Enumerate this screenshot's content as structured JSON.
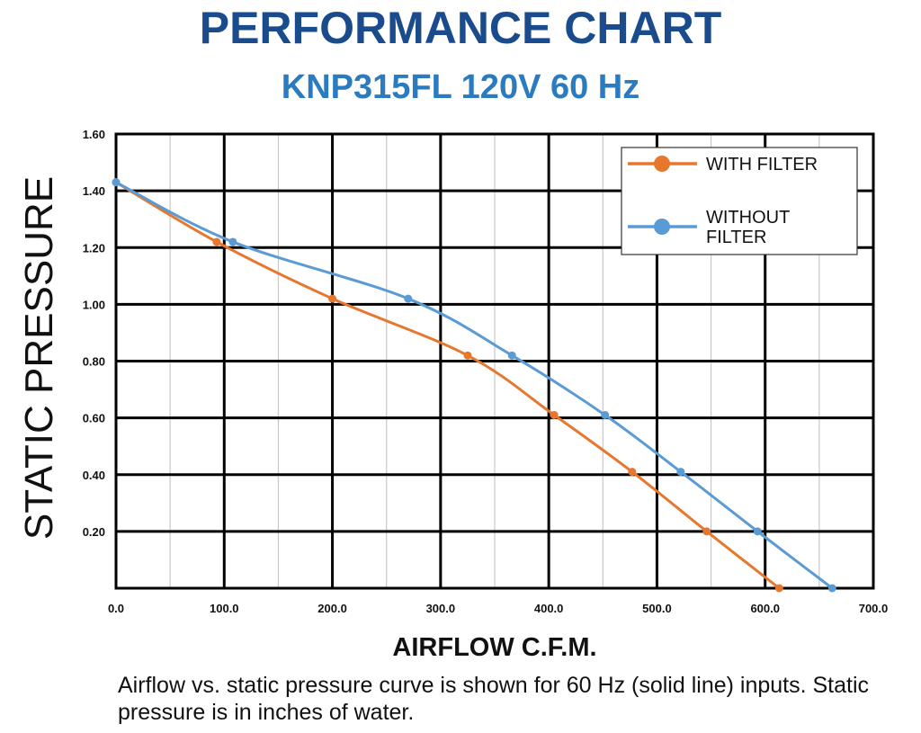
{
  "header": {
    "title": "PERFORMANCE CHART",
    "subtitle": "KNP315FL 120V 60 Hz"
  },
  "caption": "Airflow vs. static pressure curve is shown for 60 Hz (solid line) inputs. Static pressure is in inches of water.",
  "colors": {
    "title": "#1a4b8c",
    "subtitle": "#2b7bc0",
    "with_filter": "#e8772e",
    "without_filter": "#5b9bd5",
    "major_grid": "#000000",
    "minor_grid": "#c8c8c8"
  },
  "chart_data": {
    "type": "line",
    "xlabel": "AIRFLOW C.F.M.",
    "ylabel": "STATIC PRESSURE",
    "xlim": [
      0,
      700
    ],
    "ylim": [
      0,
      1.6
    ],
    "x_ticks": [
      "0.0",
      "100.0",
      "200.0",
      "300.0",
      "400.0",
      "500.0",
      "600.0",
      "700.0"
    ],
    "y_ticks": [
      "0.20",
      "0.40",
      "0.60",
      "0.80",
      "1.00",
      "1.20",
      "1.40",
      "1.60"
    ],
    "grid": true,
    "legend_position": "top-right",
    "series": [
      {
        "name": "WITH FILTER",
        "color": "#e8772e",
        "x": [
          0,
          93,
          200,
          325,
          405,
          477,
          546,
          613
        ],
        "y": [
          1.43,
          1.22,
          1.02,
          0.82,
          0.61,
          0.41,
          0.2,
          0.0
        ]
      },
      {
        "name": "WITHOUT FILTER",
        "color": "#5b9bd5",
        "x": [
          0,
          108,
          270,
          366,
          452,
          522,
          593,
          662
        ],
        "y": [
          1.43,
          1.22,
          1.02,
          0.82,
          0.61,
          0.41,
          0.2,
          0.0
        ]
      }
    ]
  }
}
